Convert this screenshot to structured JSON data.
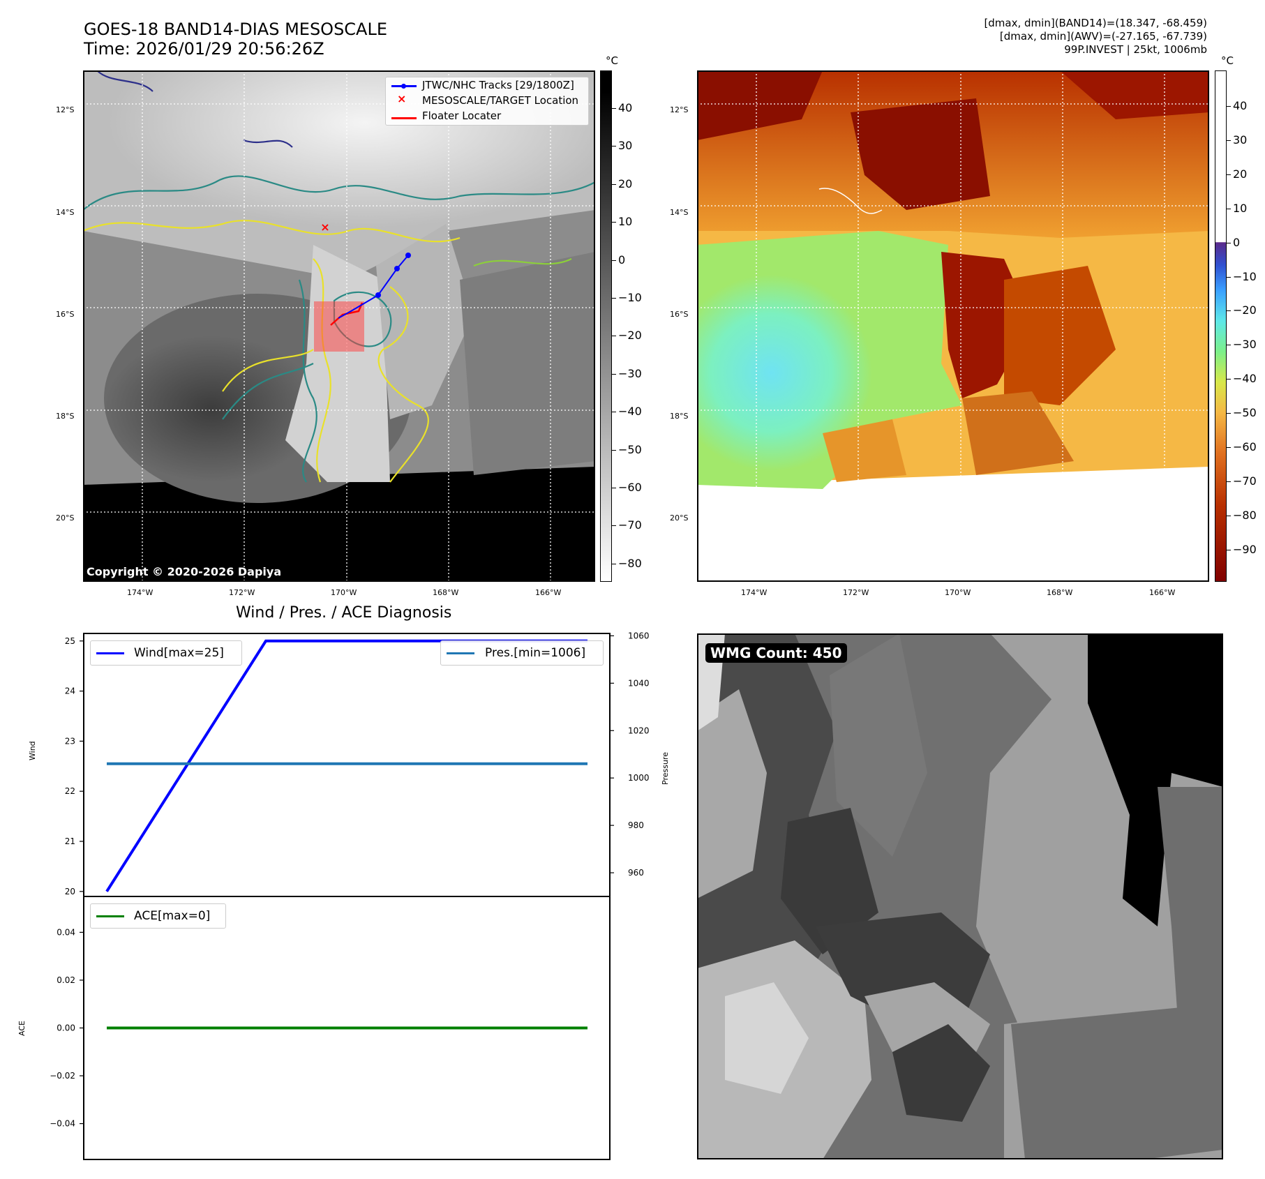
{
  "title": {
    "line1": "GOES-18 BAND14-DIAS MESOSCALE",
    "line2": "Time: 2026/01/29 20:56:26Z"
  },
  "info": {
    "line1": "[dmax, dmin](BAND14)=(18.347, -68.459)",
    "line2": "[dmax, dmin](AWV)=(-27.165, -67.739)",
    "line3": "99P.INVEST | 25kt, 1006mb"
  },
  "copyright": "Copyright © 2020-2026 Dapiya",
  "map": {
    "lat_labels": [
      "12°S",
      "14°S",
      "16°S",
      "18°S",
      "20°S"
    ],
    "lon_labels": [
      "174°W",
      "172°W",
      "170°W",
      "168°W",
      "166°W"
    ],
    "legend": [
      "JTWC/NHC Tracks [29/1800Z]",
      "MESOSCALE/TARGET Location",
      "Floater Locater"
    ],
    "colors": {
      "track": "#0000ff",
      "target": "#ff0000",
      "floater": "#ff0000"
    }
  },
  "colorbar1": {
    "unit": "°C",
    "ticks": [
      "40",
      "30",
      "20",
      "10",
      "0",
      "−10",
      "−20",
      "−30",
      "−40",
      "−50",
      "−60",
      "−70",
      "−80"
    ]
  },
  "colorbar2": {
    "unit": "°C",
    "ticks": [
      "40",
      "30",
      "20",
      "10",
      "0",
      "−10",
      "−20",
      "−30",
      "−40",
      "−50",
      "−60",
      "−70",
      "−80",
      "−90"
    ]
  },
  "chart_data": [
    {
      "type": "line",
      "title": "Wind / Pres. / ACE Diagnosis",
      "ylabel": "Wind",
      "ylabel2": "Pressure",
      "ylim": [
        19.9,
        25.15
      ],
      "ylim2": [
        950,
        1061
      ],
      "yticks": [
        20,
        21,
        22,
        23,
        24,
        25
      ],
      "yticks2": [
        960,
        980,
        1000,
        1020,
        1040,
        1060
      ],
      "series": [
        {
          "name": "Wind[max=25]",
          "axis": "left",
          "color": "#0000ff",
          "values": [
            20,
            25,
            25,
            25
          ]
        },
        {
          "name": "Pres.[min=1006]",
          "axis": "right",
          "color": "#1f77b4",
          "values": [
            1006,
            1006,
            1006,
            1006
          ]
        }
      ]
    },
    {
      "type": "line",
      "ylabel": "ACE",
      "ylim": [
        -0.055,
        0.055
      ],
      "yticks": [
        "0.04",
        "0.02",
        "0.00",
        "−0.02",
        "−0.04"
      ],
      "series": [
        {
          "name": "ACE[max=0]",
          "color": "#008000",
          "values": [
            0,
            0,
            0,
            0
          ]
        }
      ]
    }
  ],
  "wmg": {
    "label": "WMG Count: 450"
  }
}
